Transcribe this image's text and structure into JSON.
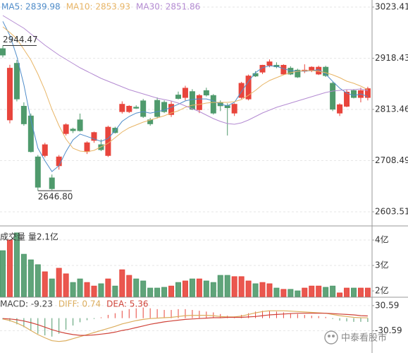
{
  "chart_data": [
    {
      "type": "candlestick",
      "open": [
        2938,
        2792,
        2908,
        2820,
        2800,
        2716,
        2719,
        2673,
        2698,
        2764,
        2773,
        2792,
        2727,
        2750,
        2741,
        2719,
        2775,
        2809,
        2809,
        2818,
        2831,
        2792,
        2832,
        2828,
        2803,
        2843,
        2838,
        2850,
        2813,
        2852,
        2842,
        2828,
        2821,
        2806,
        2838,
        2835,
        2887,
        2890,
        2904,
        2904,
        2886,
        2898,
        2894,
        2892,
        2893,
        2886,
        2900,
        2867,
        2806,
        2820,
        2852,
        2838,
        2838
      ],
      "high": [
        2944.47,
        2905,
        2915,
        2828,
        2805,
        2720,
        2745,
        2680,
        2720,
        2785,
        2776,
        2805,
        2748,
        2768,
        2752,
        2780,
        2778,
        2830,
        2822,
        2822,
        2835,
        2796,
        2838,
        2832,
        2830,
        2850,
        2862,
        2855,
        2845,
        2858,
        2845,
        2832,
        2826,
        2826,
        2870,
        2885,
        2892,
        2905,
        2916,
        2910,
        2906,
        2902,
        2897,
        2906,
        2902,
        2903,
        2903,
        2870,
        2826,
        2854,
        2855,
        2858,
        2860
      ],
      "low": [
        2920,
        2785,
        2830,
        2780,
        2725,
        2646.8,
        2715,
        2648,
        2690,
        2760,
        2765,
        2768,
        2722,
        2745,
        2728,
        2716,
        2764,
        2805,
        2806,
        2815,
        2796,
        2780,
        2795,
        2806,
        2798,
        2834,
        2832,
        2812,
        2806,
        2840,
        2803,
        2810,
        2760,
        2800,
        2835,
        2832,
        2880,
        2886,
        2900,
        2898,
        2884,
        2884,
        2878,
        2888,
        2890,
        2884,
        2880,
        2810,
        2800,
        2818,
        2836,
        2828,
        2832
      ],
      "close": [
        2925,
        2898,
        2835,
        2784,
        2727,
        2654,
        2741,
        2651,
        2716,
        2782,
        2770,
        2770,
        2745,
        2766,
        2731,
        2777,
        2766,
        2824,
        2820,
        2816,
        2799,
        2784,
        2799,
        2809,
        2824,
        2836,
        2857,
        2814,
        2842,
        2843,
        2806,
        2821,
        2817,
        2824,
        2867,
        2882,
        2882,
        2904,
        2911,
        2901,
        2904,
        2886,
        2880,
        2894,
        2900,
        2900,
        2883,
        2814,
        2823,
        2849,
        2838,
        2852,
        2856
      ],
      "up_color": "#e8453c",
      "down_color": "#4f9a6c",
      "series": [
        {
          "legend": "MA5: 2839.98",
          "color": "#4f8cc9",
          "values": [
            2994,
            2965,
            2922,
            2864,
            2792,
            2734,
            2708,
            2686,
            2698,
            2727,
            2751,
            2763,
            2758,
            2753,
            2748,
            2754,
            2770,
            2789,
            2799,
            2806,
            2809,
            2806,
            2809,
            2812,
            2818,
            2824,
            2831,
            2834,
            2835,
            2835,
            2831,
            2824,
            2821,
            2828,
            2850,
            2871,
            2889,
            2899,
            2903,
            2902,
            2897,
            2893,
            2892,
            2892,
            2893,
            2895,
            2886,
            2871,
            2857,
            2847,
            2842,
            2845,
            2839.98
          ]
        },
        {
          "legend": "MA10: 2853.93",
          "color": "#e8b566",
          "values": [
            2982.9,
            2971.3,
            2958.3,
            2936.5,
            2914.8,
            2885.9,
            2852.6,
            2813.5,
            2780.2,
            2752.6,
            2733.8,
            2728.0,
            2726.6,
            2729.5,
            2736.7,
            2744.0,
            2755.5,
            2767.1,
            2775.8,
            2781.6,
            2787.4,
            2791.7,
            2796.1,
            2800.4,
            2806.2,
            2810.6,
            2817.8,
            2822.2,
            2823.6,
            2826.5,
            2827.9,
            2827.9,
            2827.9,
            2829.4,
            2833.7,
            2842.4,
            2852.6,
            2864.1,
            2872.8,
            2878.6,
            2884.4,
            2888.8,
            2891.6,
            2893.1,
            2893.1,
            2891.6,
            2888.8,
            2884.4,
            2878.6,
            2871.4,
            2867.0,
            2861.2,
            2853.93
          ]
        },
        {
          "legend": "MA30: 2851.86",
          "color": "#b48bd2",
          "values": [
            3006.0,
            2997.4,
            2988.7,
            2980.0,
            2968.4,
            2956.8,
            2945.2,
            2935.1,
            2925.0,
            2916.3,
            2907.6,
            2898.9,
            2891.6,
            2884.4,
            2877.2,
            2871.4,
            2865.6,
            2859.8,
            2854.0,
            2849.7,
            2845.3,
            2841.0,
            2836.6,
            2833.7,
            2830.8,
            2826.5,
            2820.7,
            2814.9,
            2809.1,
            2801.9,
            2794.6,
            2788.8,
            2784.5,
            2783.1,
            2785.9,
            2791.7,
            2799.0,
            2806.2,
            2812.0,
            2817.8,
            2822.2,
            2826.5,
            2830.8,
            2835.2,
            2839.5,
            2843.9,
            2848.2,
            2851.1,
            2852.6,
            2854.0,
            2854.0,
            2855.5,
            2851.86
          ]
        }
      ],
      "annotations": [
        {
          "value": 2944.47,
          "label": "2944.47"
        },
        {
          "value": 2646.8,
          "label": "2646.80"
        }
      ],
      "ylim": [
        2577.45,
        3037.89
      ],
      "yticks": [
        3023.41,
        2918.43,
        2813.46,
        2708.49,
        2603.51
      ]
    },
    {
      "type": "bar",
      "title": "成交量 量2.1亿",
      "values": [
        3.58,
        4.0,
        4.28,
        3.44,
        3.22,
        3.03,
        2.75,
        2.47,
        2.89,
        2.67,
        2.33,
        2.47,
        2.33,
        2.19,
        2.28,
        2.47,
        2.19,
        2.83,
        2.61,
        2.47,
        2.39,
        2.11,
        2.11,
        2.14,
        2.19,
        2.33,
        2.39,
        2.47,
        2.47,
        2.39,
        2.33,
        2.61,
        2.61,
        2.56,
        2.56,
        2.39,
        2.28,
        2.33,
        2.28,
        2.11,
        2.06,
        2.06,
        2.0,
        2.11,
        2.19,
        2.19,
        2.14,
        2.19,
        1.92,
        2.11,
        2.11,
        2.11,
        2.11
      ],
      "ylim": [
        1.78,
        4.5
      ],
      "yticks": [
        {
          "value": 4,
          "label": "4亿"
        },
        {
          "value": 3,
          "label": "3亿"
        },
        {
          "value": 2,
          "label": "2亿"
        }
      ]
    },
    {
      "type": "macd",
      "legend": "MACD: -9.23",
      "values": [
        -3,
        -8,
        -15,
        -22,
        -30,
        -38,
        -42,
        -45,
        -38,
        -28,
        -18,
        -10,
        -5,
        -2,
        2,
        8,
        12,
        18,
        22,
        24,
        26,
        24,
        22,
        20,
        20,
        22,
        22,
        20,
        18,
        16,
        14,
        10,
        6,
        4,
        8,
        12,
        16,
        18,
        18,
        16,
        14,
        12,
        10,
        8,
        6,
        5,
        3,
        -2,
        -6,
        -8,
        -9,
        -9,
        -9.23
      ],
      "series": [
        {
          "legend": "DIFF: 0.74",
          "color": "#dcae5e",
          "values": [
            -2,
            -6,
            -12,
            -20,
            -30,
            -40,
            -48,
            -55,
            -57,
            -55,
            -50,
            -45,
            -40,
            -35,
            -30,
            -25,
            -20,
            -14,
            -10,
            -6,
            -3,
            -1,
            0,
            1,
            2,
            4,
            6,
            7,
            7,
            7,
            6,
            4,
            3,
            3,
            5,
            9,
            13,
            16,
            18,
            18,
            18,
            17,
            16,
            15,
            14,
            13,
            12,
            9,
            6,
            4,
            2,
            1,
            0.74
          ]
        },
        {
          "legend": "DEA: 5.36",
          "color": "#d0443a",
          "values": [
            -1,
            -2,
            -4,
            -7,
            -11,
            -16,
            -22,
            -28,
            -33,
            -37,
            -40,
            -42,
            -42,
            -41,
            -39,
            -37,
            -34,
            -30,
            -27,
            -23,
            -19,
            -15,
            -12,
            -9,
            -7,
            -5,
            -3,
            -2,
            -1,
            0,
            1,
            1,
            2,
            2,
            2,
            3,
            4,
            6,
            8,
            9,
            10,
            11,
            12,
            12,
            12,
            12,
            12,
            11,
            10,
            9,
            8,
            6,
            5.36
          ]
        }
      ],
      "ylim": [
        -84.98,
        50.99
      ],
      "yticks": [
        30.59,
        -30.59
      ]
    }
  ],
  "watermark": "中泰看股市"
}
